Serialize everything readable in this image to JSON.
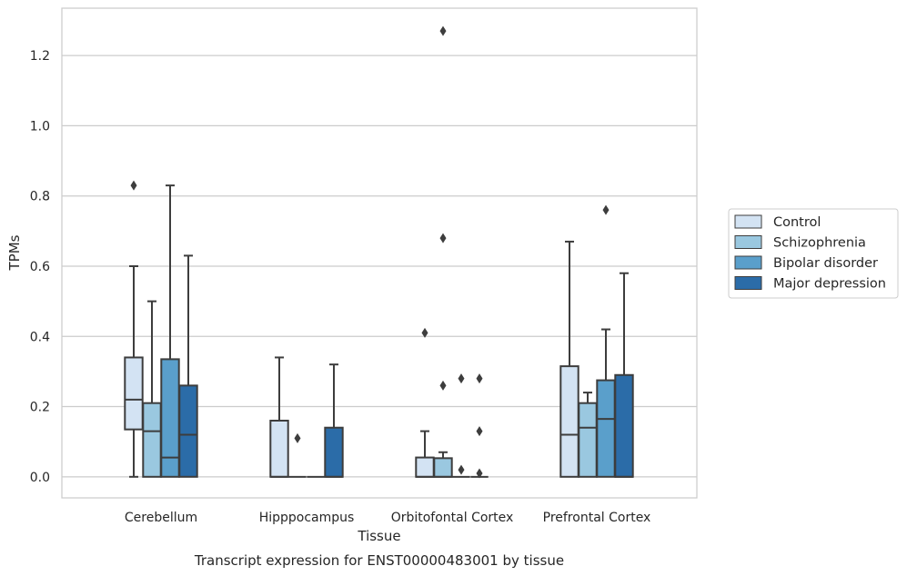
{
  "chart_data": {
    "type": "box",
    "caption": "Transcript expression for ENST00000483001 by tissue",
    "xlabel": "Tissue",
    "ylabel": "TPMs",
    "ylim": [
      -0.06,
      1.335
    ],
    "yticks": [
      0.0,
      0.2,
      0.4,
      0.6,
      0.8,
      1.0,
      1.2
    ],
    "ytick_labels": [
      "0.0",
      "0.2",
      "0.4",
      "0.6",
      "0.8",
      "1.0",
      "1.2"
    ],
    "grid": "horizontal",
    "legend_position": "right",
    "categories": [
      "Cerebellum",
      "Hipppocampus",
      "Orbitofontal Cortex",
      "Prefrontal Cortex"
    ],
    "series": [
      {
        "name": "Control",
        "color": "#d3e3f3",
        "boxes": [
          {
            "q1": 0.135,
            "median": 0.22,
            "q3": 0.34,
            "whisker_low": 0.0,
            "whisker_high": 0.6,
            "outliers": [
              0.83
            ]
          },
          {
            "q1": 0.0,
            "median": 0.0,
            "q3": 0.16,
            "whisker_low": 0.0,
            "whisker_high": 0.34,
            "outliers": []
          },
          {
            "q1": 0.0,
            "median": 0.0,
            "q3": 0.055,
            "whisker_low": 0.0,
            "whisker_high": 0.13,
            "outliers": [
              0.41
            ]
          },
          {
            "q1": 0.0,
            "median": 0.12,
            "q3": 0.315,
            "whisker_low": 0.0,
            "whisker_high": 0.67,
            "outliers": []
          }
        ]
      },
      {
        "name": "Schizophrenia",
        "color": "#9ac8e0",
        "boxes": [
          {
            "q1": 0.0,
            "median": 0.13,
            "q3": 0.21,
            "whisker_low": 0.0,
            "whisker_high": 0.5,
            "outliers": []
          },
          {
            "q1": 0.0,
            "median": 0.0,
            "q3": 0.0,
            "whisker_low": 0.0,
            "whisker_high": 0.0,
            "outliers": [
              0.11
            ]
          },
          {
            "q1": 0.0,
            "median": 0.0,
            "q3": 0.053,
            "whisker_low": 0.0,
            "whisker_high": 0.07,
            "outliers": [
              0.26,
              0.68,
              1.27
            ]
          },
          {
            "q1": 0.0,
            "median": 0.14,
            "q3": 0.21,
            "whisker_low": 0.0,
            "whisker_high": 0.24,
            "outliers": []
          }
        ]
      },
      {
        "name": "Bipolar disorder",
        "color": "#5a9fcb",
        "boxes": [
          {
            "q1": 0.0,
            "median": 0.055,
            "q3": 0.335,
            "whisker_low": 0.0,
            "whisker_high": 0.83,
            "outliers": []
          },
          {
            "q1": 0.0,
            "median": 0.0,
            "q3": 0.0,
            "whisker_low": 0.0,
            "whisker_high": 0.0,
            "outliers": []
          },
          {
            "q1": 0.0,
            "median": 0.0,
            "q3": 0.0,
            "whisker_low": 0.0,
            "whisker_high": 0.0,
            "outliers": [
              0.02,
              0.28
            ]
          },
          {
            "q1": 0.0,
            "median": 0.165,
            "q3": 0.275,
            "whisker_low": 0.0,
            "whisker_high": 0.42,
            "outliers": [
              0.76
            ]
          }
        ]
      },
      {
        "name": "Major depression",
        "color": "#2b6ca8",
        "boxes": [
          {
            "q1": 0.0,
            "median": 0.12,
            "q3": 0.26,
            "whisker_low": 0.0,
            "whisker_high": 0.63,
            "outliers": []
          },
          {
            "q1": 0.0,
            "median": 0.0,
            "q3": 0.14,
            "whisker_low": 0.0,
            "whisker_high": 0.32,
            "outliers": []
          },
          {
            "q1": 0.0,
            "median": 0.0,
            "q3": 0.0,
            "whisker_low": 0.0,
            "whisker_high": 0.0,
            "outliers": [
              0.01,
              0.13,
              0.28
            ]
          },
          {
            "q1": 0.0,
            "median": 0.0,
            "q3": 0.29,
            "whisker_low": 0.0,
            "whisker_high": 0.58,
            "outliers": []
          }
        ]
      }
    ]
  }
}
